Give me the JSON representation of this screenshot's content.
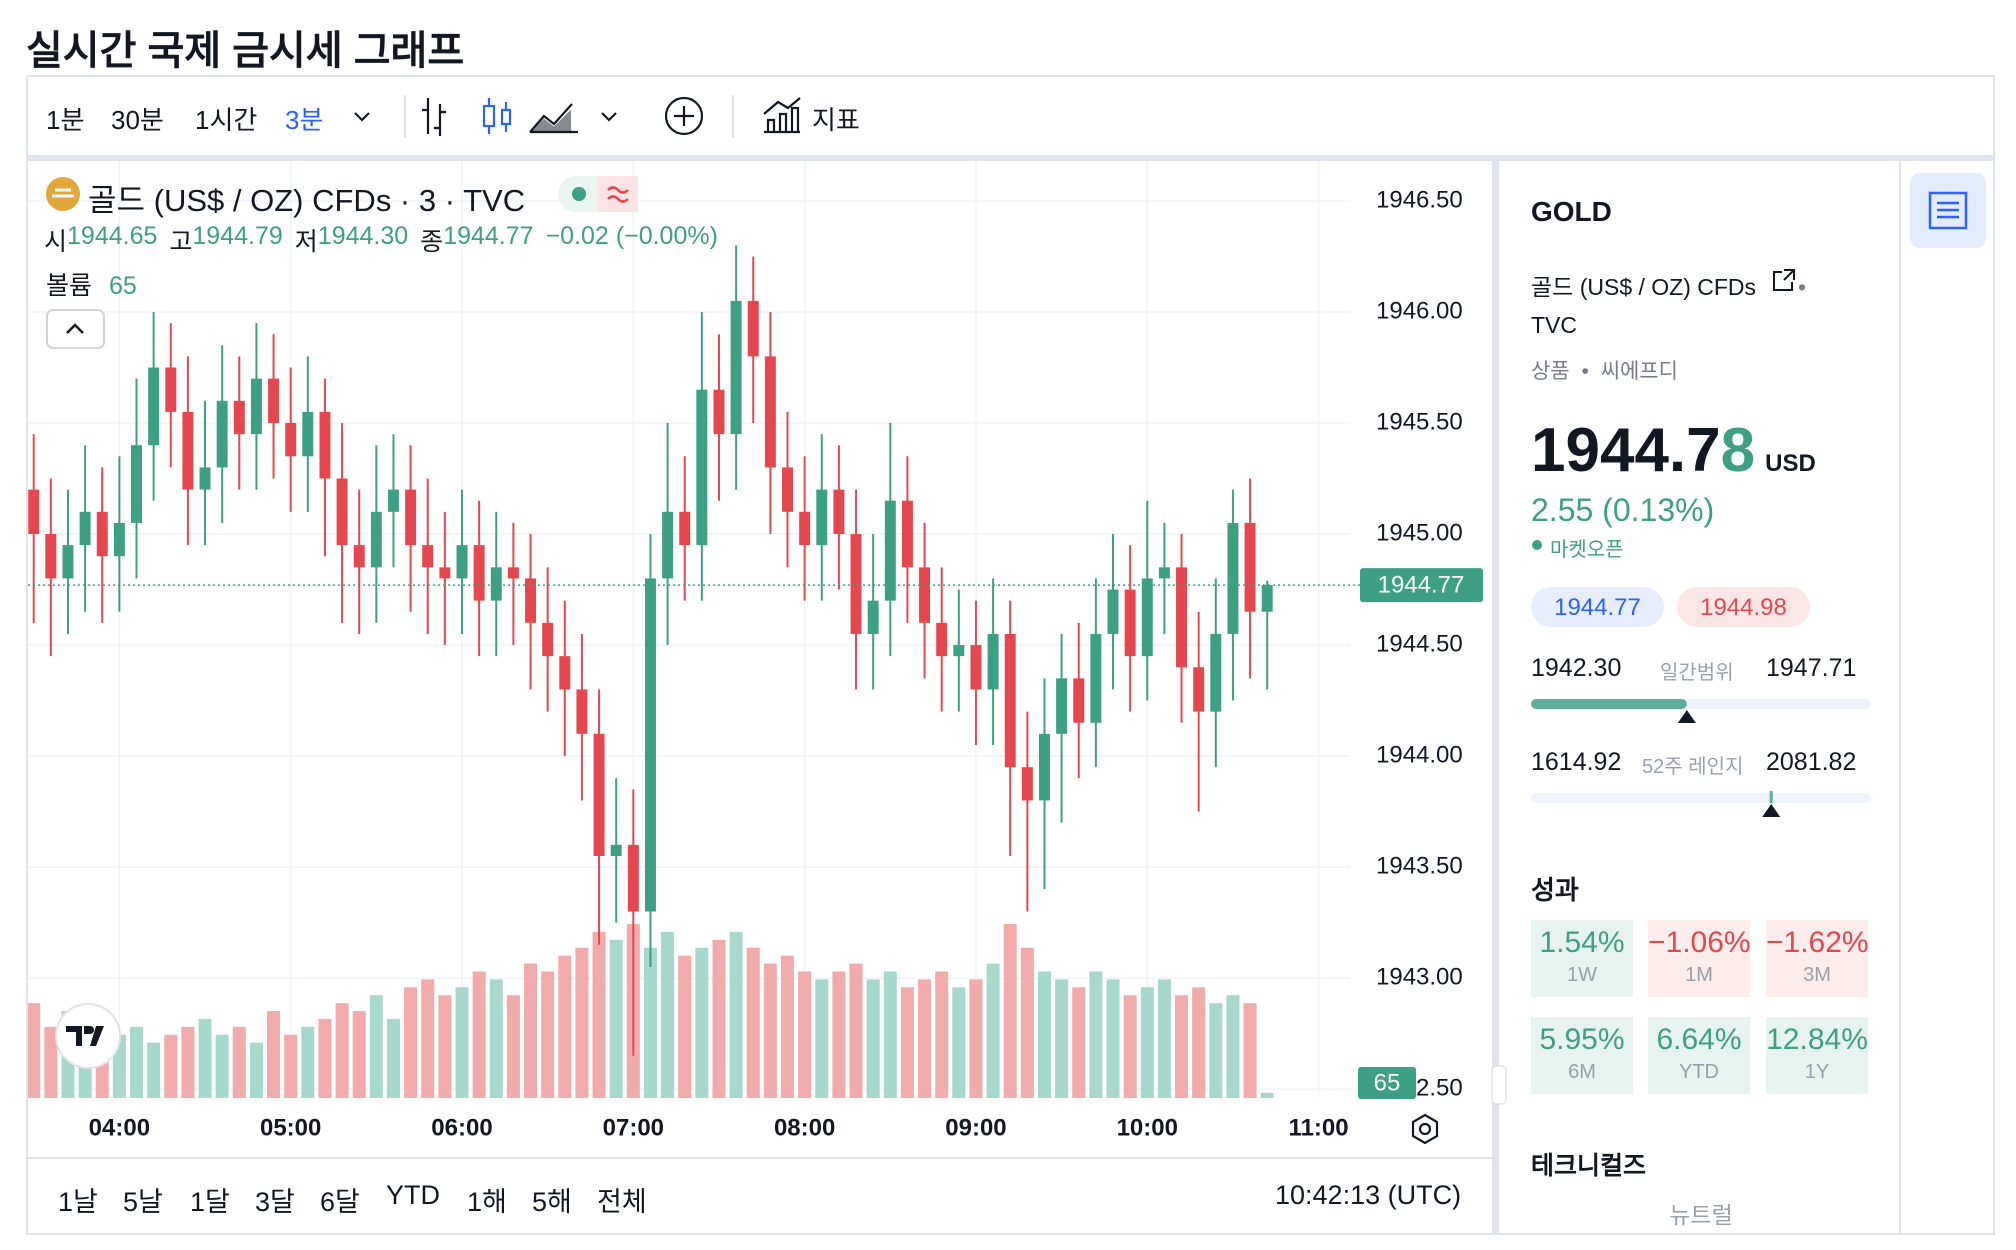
{
  "page_title": "실시간 국제 금시세 그래프",
  "toolbar": {
    "intervals": [
      "1분",
      "30분",
      "1시간",
      "3분"
    ],
    "indicators": "지표"
  },
  "bottom_bar": {
    "ranges": [
      "1날",
      "5날",
      "1달",
      "3달",
      "6달",
      "YTD",
      "1해",
      "5해",
      "전체"
    ],
    "clock": "10:42:13 (UTC)"
  },
  "legend": {
    "symbol": "골드 (US$ / OZ) CFDs · 3 · TVC",
    "open_label": "시",
    "open": "1944.65",
    "high_label": "고",
    "high": "1944.79",
    "low_label": "저",
    "low": "1944.30",
    "close_label": "종",
    "close": "1944.77",
    "change": "−0.02 (−0.00%)",
    "volume_label": "볼륨"
  },
  "chart_data": {
    "type": "candlestick",
    "x": [
      210,
      216,
      222,
      228,
      234,
      240,
      246,
      252,
      258,
      264,
      270,
      276,
      282,
      288,
      294,
      300,
      306,
      312,
      318,
      324,
      330,
      336,
      342,
      348,
      354,
      360,
      366,
      372,
      378,
      384,
      390,
      396,
      402,
      408,
      414,
      420,
      426,
      432,
      438,
      444,
      450,
      456,
      462,
      468,
      474,
      480,
      486,
      492,
      498,
      504,
      510,
      516,
      522,
      528,
      534,
      540,
      546,
      552,
      558,
      564,
      570,
      576,
      582,
      588,
      594,
      600,
      606,
      612,
      618,
      624,
      630,
      636,
      642
    ],
    "open": [
      1945.2,
      1945.0,
      1944.8,
      1944.95,
      1945.1,
      1944.9,
      1945.05,
      1945.4,
      1945.75,
      1945.55,
      1945.2,
      1945.3,
      1945.6,
      1945.45,
      1945.7,
      1945.5,
      1945.35,
      1945.55,
      1945.25,
      1944.95,
      1944.85,
      1945.1,
      1945.2,
      1944.95,
      1944.85,
      1944.8,
      1944.95,
      1944.7,
      1944.85,
      1944.8,
      1944.6,
      1944.45,
      1944.3,
      1944.1,
      1943.55,
      1943.6,
      1943.3,
      1944.8,
      1945.1,
      1944.95,
      1945.65,
      1945.45,
      1946.05,
      1945.8,
      1945.3,
      1945.1,
      1944.95,
      1945.2,
      1945.0,
      1944.55,
      1944.7,
      1945.15,
      1944.85,
      1944.6,
      1944.45,
      1944.5,
      1944.3,
      1944.55,
      1943.95,
      1943.8,
      1944.1,
      1944.35,
      1944.15,
      1944.55,
      1944.75,
      1944.45,
      1944.8,
      1944.85,
      1944.4,
      1944.2,
      1944.55,
      1945.05,
      1944.65
    ],
    "high": [
      1945.45,
      1945.25,
      1945.2,
      1945.4,
      1945.3,
      1945.35,
      1945.7,
      1946.0,
      1945.95,
      1945.8,
      1945.6,
      1945.85,
      1945.8,
      1945.95,
      1945.9,
      1945.75,
      1945.8,
      1945.7,
      1945.5,
      1945.2,
      1945.4,
      1945.45,
      1945.4,
      1945.25,
      1945.1,
      1945.2,
      1945.15,
      1945.1,
      1945.05,
      1945.0,
      1944.85,
      1944.7,
      1944.55,
      1944.3,
      1943.9,
      1943.85,
      1945.0,
      1945.5,
      1945.35,
      1946.0,
      1945.9,
      1946.3,
      1946.25,
      1946.0,
      1945.55,
      1945.35,
      1945.45,
      1945.4,
      1945.2,
      1945.0,
      1945.5,
      1945.35,
      1945.05,
      1944.85,
      1944.75,
      1944.7,
      1944.8,
      1944.7,
      1944.2,
      1944.35,
      1944.55,
      1944.6,
      1944.8,
      1945.0,
      1944.95,
      1945.15,
      1945.05,
      1945.0,
      1944.65,
      1944.8,
      1945.2,
      1945.25,
      1944.79
    ],
    "low": [
      1944.6,
      1944.45,
      1944.55,
      1944.65,
      1944.6,
      1944.65,
      1944.8,
      1945.15,
      1945.3,
      1944.95,
      1944.95,
      1945.05,
      1945.2,
      1945.2,
      1945.25,
      1945.1,
      1945.1,
      1944.9,
      1944.6,
      1944.55,
      1944.6,
      1944.85,
      1944.65,
      1944.55,
      1944.5,
      1944.55,
      1944.45,
      1944.45,
      1944.5,
      1944.3,
      1944.2,
      1944.0,
      1943.8,
      1943.15,
      1943.25,
      1942.65,
      1943.05,
      1944.5,
      1944.7,
      1944.7,
      1945.15,
      1945.2,
      1945.5,
      1945.0,
      1944.85,
      1944.7,
      1944.7,
      1944.75,
      1944.3,
      1944.3,
      1944.45,
      1944.6,
      1944.35,
      1944.2,
      1944.2,
      1944.05,
      1944.05,
      1943.55,
      1943.3,
      1943.4,
      1943.7,
      1943.9,
      1943.95,
      1944.3,
      1944.2,
      1944.25,
      1944.55,
      1944.15,
      1943.75,
      1943.95,
      1944.25,
      1944.35,
      1944.3
    ],
    "close": [
      1945.0,
      1944.8,
      1944.95,
      1945.1,
      1944.9,
      1945.05,
      1945.4,
      1945.75,
      1945.55,
      1945.2,
      1945.3,
      1945.6,
      1945.45,
      1945.7,
      1945.5,
      1945.35,
      1945.55,
      1945.25,
      1944.95,
      1944.85,
      1945.1,
      1945.2,
      1944.95,
      1944.85,
      1944.8,
      1944.95,
      1944.7,
      1944.85,
      1944.8,
      1944.6,
      1944.45,
      1944.3,
      1944.1,
      1943.55,
      1943.6,
      1943.3,
      1944.8,
      1945.1,
      1944.95,
      1945.65,
      1945.45,
      1946.05,
      1945.8,
      1945.3,
      1945.1,
      1944.95,
      1945.2,
      1945.0,
      1944.55,
      1944.7,
      1945.15,
      1944.85,
      1944.6,
      1944.45,
      1944.5,
      1944.3,
      1944.55,
      1943.95,
      1943.8,
      1944.1,
      1944.35,
      1944.15,
      1944.55,
      1944.75,
      1944.45,
      1944.8,
      1944.85,
      1944.4,
      1944.2,
      1944.55,
      1945.05,
      1944.65,
      1944.77
    ],
    "volume": [
      1200,
      900,
      1100,
      700,
      1000,
      800,
      900,
      700,
      800,
      900,
      1000,
      800,
      900,
      700,
      1100,
      800,
      900,
      1000,
      1200,
      1100,
      1300,
      1000,
      1400,
      1500,
      1300,
      1400,
      1600,
      1500,
      1300,
      1700,
      1600,
      1800,
      1900,
      2100,
      2000,
      2200,
      1900,
      2100,
      1800,
      1900,
      2000,
      2100,
      1900,
      1700,
      1800,
      1600,
      1500,
      1600,
      1700,
      1500,
      1600,
      1400,
      1500,
      1600,
      1400,
      1500,
      1700,
      2200,
      1900,
      1600,
      1500,
      1400,
      1600,
      1500,
      1300,
      1400,
      1500,
      1300,
      1400,
      1200,
      1300,
      1200,
      65
    ],
    "up_color": "#3d9f83",
    "down_color": "#e5474f",
    "up_volume_color": "#a6d8cc",
    "down_volume_color": "#f2abab",
    "xlim": [
      208,
      671
    ],
    "ylim": [
      1942.46,
      1946.68
    ],
    "vlim": [
      0,
      11850
    ],
    "xticks": [
      {
        "value": 240,
        "label": "04:00"
      },
      {
        "value": 300,
        "label": "05:00"
      },
      {
        "value": 360,
        "label": "06:00"
      },
      {
        "value": 420,
        "label": "07:00"
      },
      {
        "value": 480,
        "label": "08:00"
      },
      {
        "value": 540,
        "label": "09:00"
      },
      {
        "value": 600,
        "label": "10:00"
      },
      {
        "value": 660,
        "label": "11:00"
      }
    ],
    "yticks": [
      {
        "value": 1942.5,
        "label": "1942.50"
      },
      {
        "value": 1943,
        "label": "1943.00"
      },
      {
        "value": 1943.5,
        "label": "1943.50"
      },
      {
        "value": 1944,
        "label": "1944.00"
      },
      {
        "value": 1944.5,
        "label": "1944.50"
      },
      {
        "value": 1945,
        "label": "1945.00"
      },
      {
        "value": 1945.5,
        "label": "1945.50"
      },
      {
        "value": 1946,
        "label": "1946.00"
      },
      {
        "value": 1946.5,
        "label": "1946.50"
      }
    ],
    "grid": true
  },
  "panel": {
    "symbol": "GOLD",
    "name": "골드 (US$ / OZ) CFDs",
    "separator": "•",
    "exchange": "TVC",
    "category": "상품",
    "category_separator": "•",
    "category_type": "씨에프디",
    "price": 1944.78,
    "currency": "USD",
    "change": "2.55 (0.13%)",
    "status": "마켓오픈",
    "bid": "1944.77",
    "ask": "1944.98",
    "day_low": "1942.30",
    "day_range_label": "일간범위",
    "day_high": "1947.71",
    "week52_low": "1614.92",
    "week52_label": "52주 레인지",
    "week52_high": "2081.82",
    "performance_title": "성과",
    "performance": [
      {
        "value": "1.54%",
        "period": "1W"
      },
      {
        "value": "−1.06%",
        "period": "1M"
      },
      {
        "value": "−1.62%",
        "period": "3M"
      },
      {
        "value": "5.95%",
        "period": "6M"
      },
      {
        "value": "6.64%",
        "period": "YTD"
      },
      {
        "value": "12.84%",
        "period": "1Y"
      }
    ],
    "technicals_title": "테크니컬즈",
    "technicals": "뉴트럴"
  }
}
